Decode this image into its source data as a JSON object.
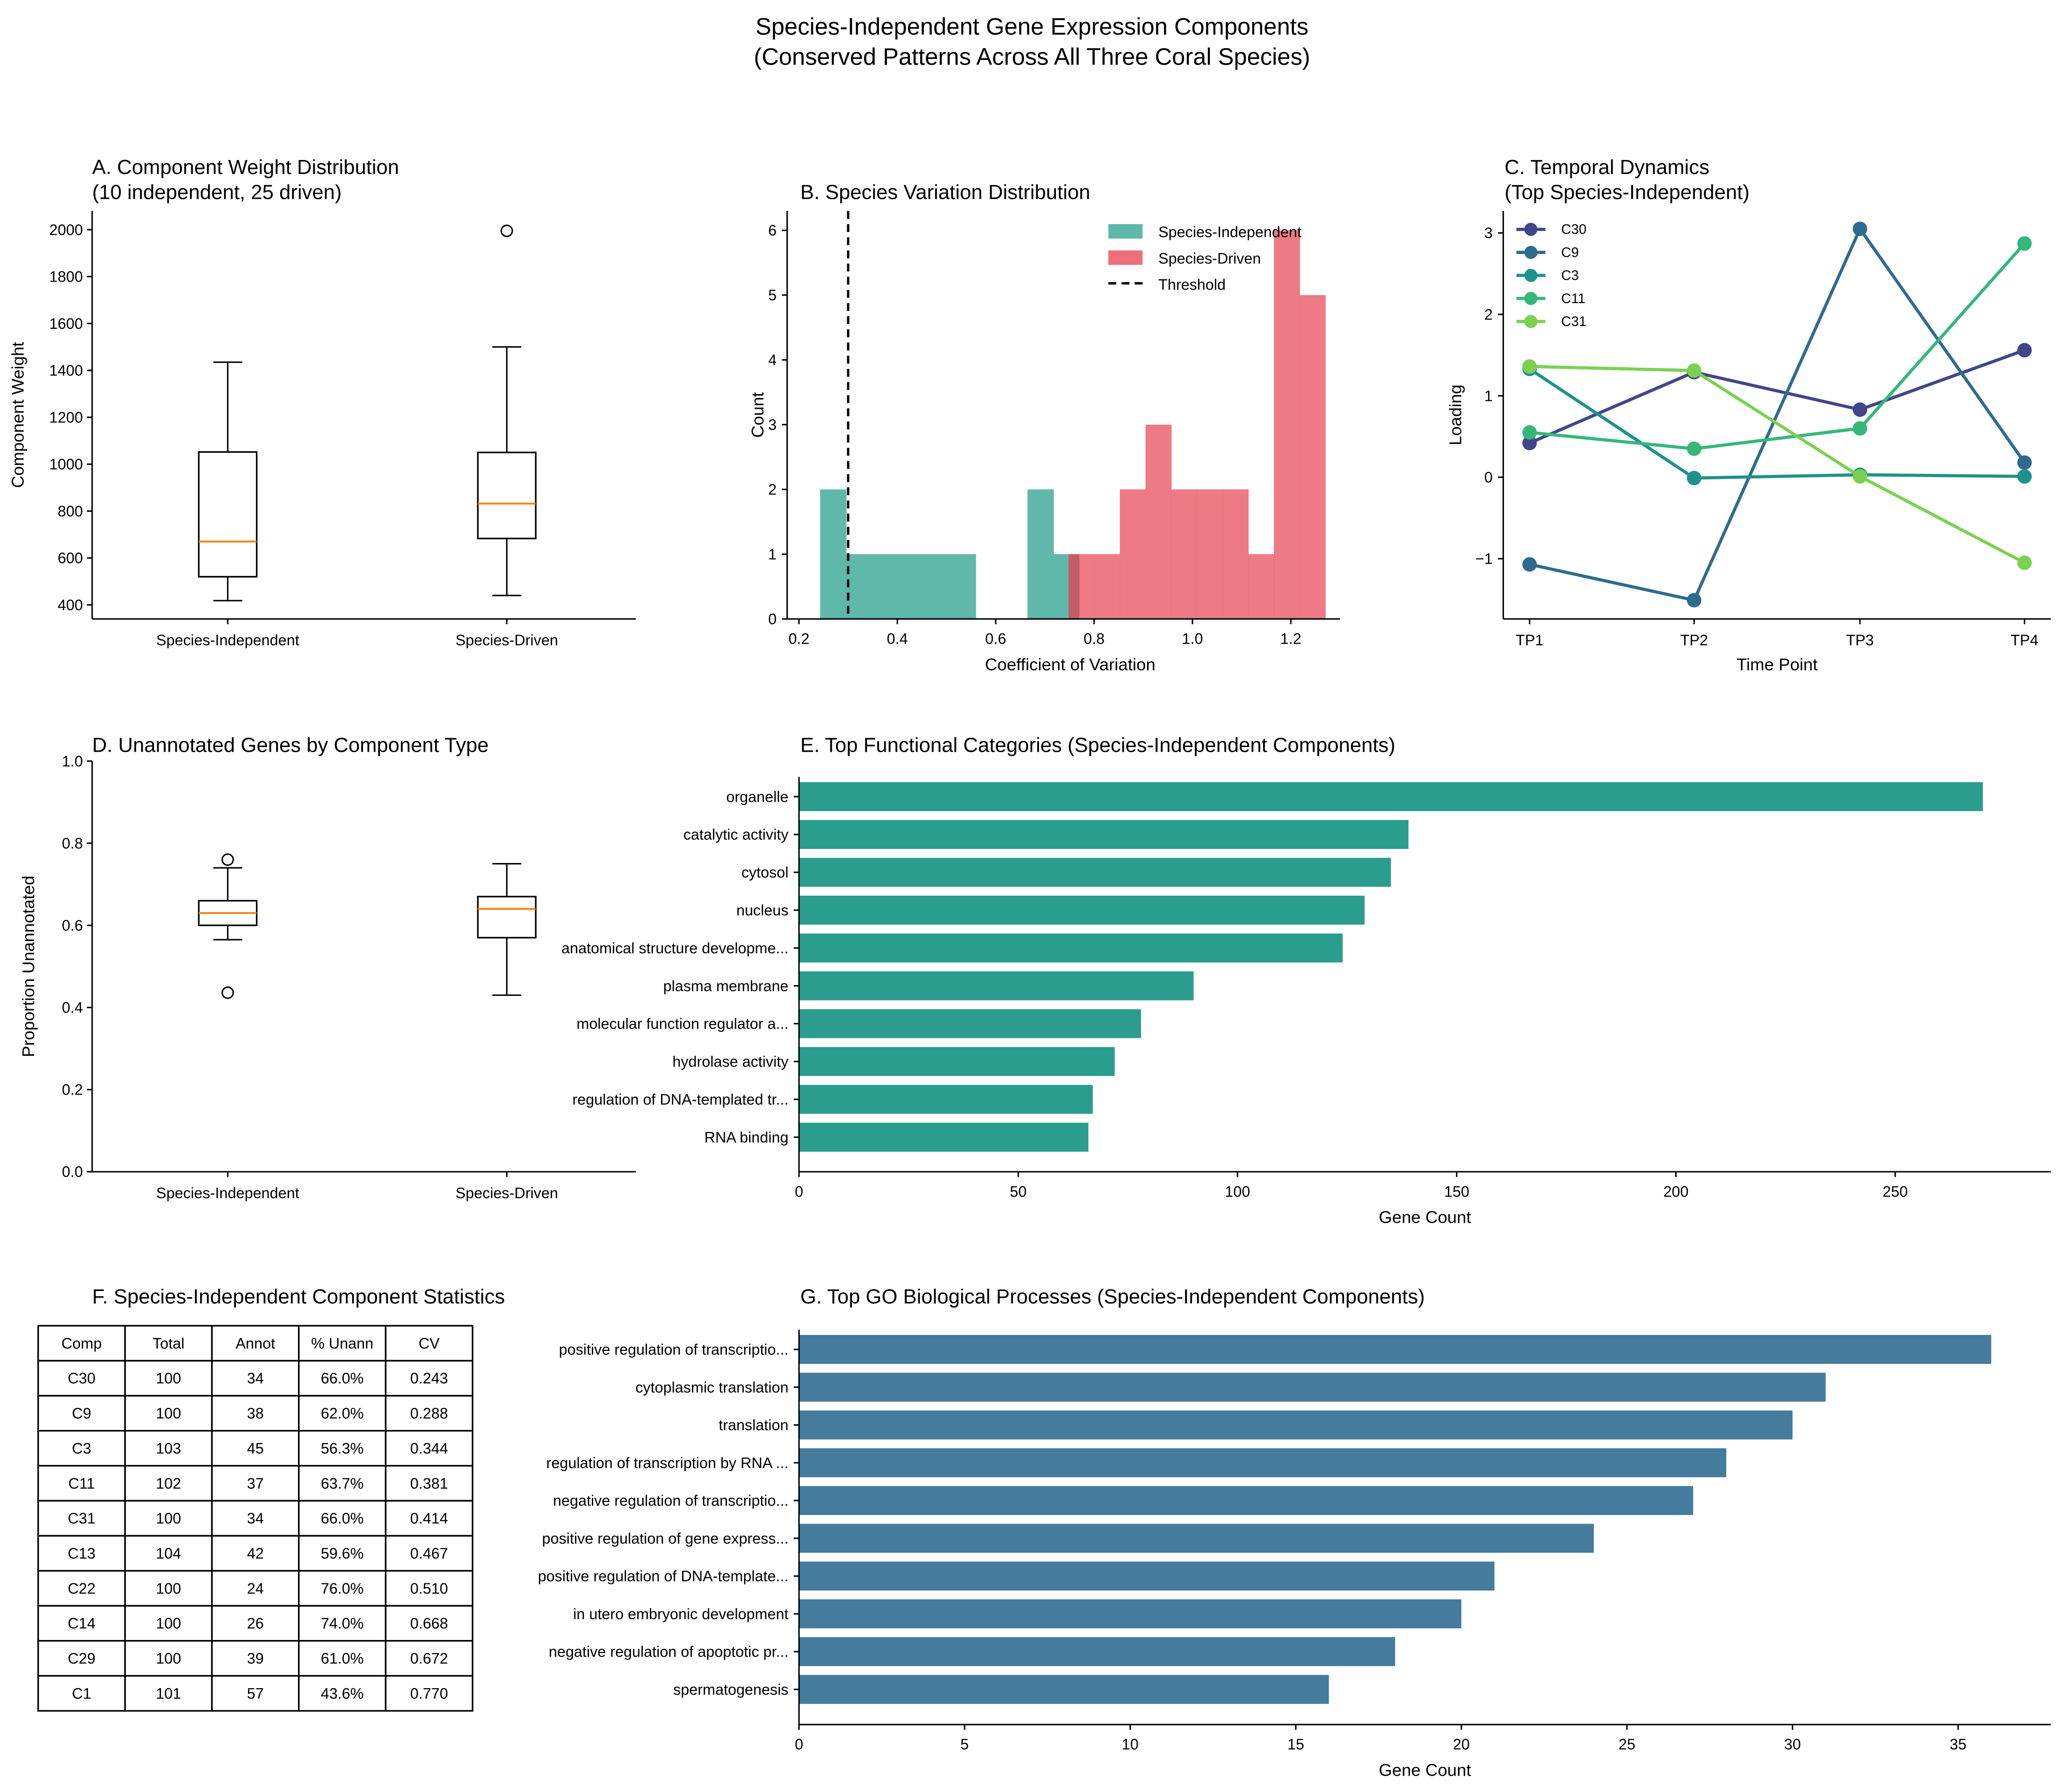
{
  "suptitle": [
    "Species-Independent Gene Expression Components",
    "(Conserved Patterns Across All Three Coral Species)"
  ],
  "colors": {
    "median": "#ff7f0e",
    "independent_hist": "#5fb8aa",
    "driven_hist": "#ec6f7a",
    "functional_bar": "#2a9d8f",
    "go_bar": "#457b9d"
  },
  "chart_data": [
    {
      "id": "A",
      "type": "box",
      "title": [
        "A. Component Weight Distribution",
        "(10 independent, 25 driven)"
      ],
      "ylabel": "Component Weight",
      "ylim": [
        340,
        2080
      ],
      "yticks": [
        400,
        600,
        800,
        1000,
        1200,
        1400,
        1600,
        1800,
        2000
      ],
      "categories": [
        "Species-Independent",
        "Species-Driven"
      ],
      "boxes": [
        {
          "whislo": 418,
          "q1": 520,
          "med": 670,
          "q3": 1052,
          "whishi": 1435,
          "fliers": []
        },
        {
          "whislo": 440,
          "q1": 683,
          "med": 832,
          "q3": 1050,
          "whishi": 1500,
          "fliers": [
            1995
          ]
        }
      ]
    },
    {
      "id": "B",
      "type": "histogram",
      "title": [
        "B. Species Variation Distribution"
      ],
      "xlabel": "Coefficient of Variation",
      "ylabel": "Count",
      "xlim": [
        0.176,
        1.3
      ],
      "ylim": [
        0,
        6.3
      ],
      "xticks": [
        "0.2",
        "0.4",
        "0.6",
        "0.8",
        "1.0",
        "1.2"
      ],
      "yticks": [
        0,
        1,
        2,
        3,
        4,
        5,
        6
      ],
      "threshold": 0.3,
      "series": [
        {
          "name": "Species-Independent",
          "bin_start": 0.243,
          "bin_end": 0.77,
          "counts": [
            2,
            1,
            1,
            1,
            1,
            1,
            0,
            0,
            2,
            1
          ]
        },
        {
          "name": "Species-Driven",
          "bin_start": 0.748,
          "bin_end": 1.27,
          "counts": [
            1,
            1,
            2,
            3,
            2,
            2,
            2,
            1,
            6,
            5
          ]
        }
      ],
      "legend": [
        "Species-Independent",
        "Species-Driven",
        "Threshold"
      ],
      "legend_position": "top-right"
    },
    {
      "id": "C",
      "type": "line",
      "title": [
        "C. Temporal Dynamics",
        "(Top Species-Independent)"
      ],
      "xlabel": "Time Point",
      "ylabel": "Loading",
      "categories": [
        "TP1",
        "TP2",
        "TP3",
        "TP4"
      ],
      "ylim": [
        -1.74,
        3.27
      ],
      "yticks": [
        -1,
        0,
        1,
        2,
        3
      ],
      "ytick_labels": [
        "−1",
        "0",
        "1",
        "2",
        "3"
      ],
      "series": [
        {
          "name": "C30",
          "color": "#3f4788",
          "values": [
            0.42,
            1.29,
            0.83,
            1.56
          ]
        },
        {
          "name": "C9",
          "color": "#2e6b8e",
          "values": [
            -1.07,
            -1.51,
            3.05,
            0.18
          ]
        },
        {
          "name": "C3",
          "color": "#1f918b",
          "values": [
            1.33,
            -0.01,
            0.03,
            0.01
          ]
        },
        {
          "name": "C11",
          "color": "#35b779",
          "values": [
            0.55,
            0.35,
            0.6,
            2.87
          ]
        },
        {
          "name": "C31",
          "color": "#7ad151",
          "values": [
            1.36,
            1.31,
            0.01,
            -1.05
          ]
        }
      ],
      "legend_position": "top-left"
    },
    {
      "id": "D",
      "type": "box",
      "title": [
        "D. Unannotated Genes by Component Type"
      ],
      "ylabel": "Proportion Unannotated",
      "ylim": [
        0,
        1.0
      ],
      "yticks": [
        0,
        0.2,
        0.4,
        0.6,
        0.8,
        1.0
      ],
      "ytick_labels": [
        "0.0",
        "0.2",
        "0.4",
        "0.6",
        "0.8",
        "1.0"
      ],
      "categories": [
        "Species-Independent",
        "Species-Driven"
      ],
      "boxes": [
        {
          "whislo": 0.565,
          "q1": 0.6,
          "med": 0.63,
          "q3": 0.66,
          "whishi": 0.74,
          "fliers": [
            0.76,
            0.436
          ]
        },
        {
          "whislo": 0.43,
          "q1": 0.57,
          "med": 0.64,
          "q3": 0.67,
          "whishi": 0.75,
          "fliers": []
        }
      ]
    },
    {
      "id": "E",
      "type": "bar",
      "title": [
        "E. Top Functional Categories (Species-Independent Components)"
      ],
      "xlabel": "Gene Count",
      "xlim": [
        0,
        285.5
      ],
      "xticks": [
        0,
        50,
        100,
        150,
        200,
        250
      ],
      "categories": [
        "organelle",
        "catalytic activity",
        "cytosol",
        "nucleus",
        "anatomical structure developme...",
        "plasma membrane",
        "molecular function regulator a...",
        "hydrolase activity",
        "regulation of DNA-templated tr...",
        "RNA binding"
      ],
      "values": [
        270,
        139,
        135,
        129,
        124,
        90,
        78,
        72,
        67,
        66
      ]
    },
    {
      "id": "F",
      "type": "table",
      "title": [
        "F. Species-Independent Component Statistics"
      ],
      "columns": [
        "Comp",
        "Total",
        "Annot",
        "% Unann",
        "CV"
      ],
      "rows": [
        [
          "C30",
          "100",
          "34",
          "66.0%",
          "0.243"
        ],
        [
          "C9",
          "100",
          "38",
          "62.0%",
          "0.288"
        ],
        [
          "C3",
          "103",
          "45",
          "56.3%",
          "0.344"
        ],
        [
          "C11",
          "102",
          "37",
          "63.7%",
          "0.381"
        ],
        [
          "C31",
          "100",
          "34",
          "66.0%",
          "0.414"
        ],
        [
          "C13",
          "104",
          "42",
          "59.6%",
          "0.467"
        ],
        [
          "C22",
          "100",
          "24",
          "76.0%",
          "0.510"
        ],
        [
          "C14",
          "100",
          "26",
          "74.0%",
          "0.668"
        ],
        [
          "C29",
          "100",
          "39",
          "61.0%",
          "0.672"
        ],
        [
          "C1",
          "101",
          "57",
          "43.6%",
          "0.770"
        ]
      ]
    },
    {
      "id": "G",
      "type": "bar",
      "title": [
        "G. Top GO Biological Processes (Species-Independent Components)"
      ],
      "xlabel": "Gene Count",
      "xlim": [
        0,
        37.8
      ],
      "xticks": [
        0,
        5,
        10,
        15,
        20,
        25,
        30,
        35
      ],
      "categories": [
        "positive regulation of transcriptio...",
        "cytoplasmic translation",
        "translation",
        "regulation of transcription by RNA ...",
        "negative regulation of transcriptio...",
        "positive regulation of gene express...",
        "positive regulation of DNA-template...",
        "in utero embryonic development",
        "negative regulation of apoptotic pr...",
        "spermatogenesis"
      ],
      "values": [
        36,
        31,
        30,
        28,
        27,
        24,
        21,
        20,
        18,
        16
      ]
    }
  ]
}
